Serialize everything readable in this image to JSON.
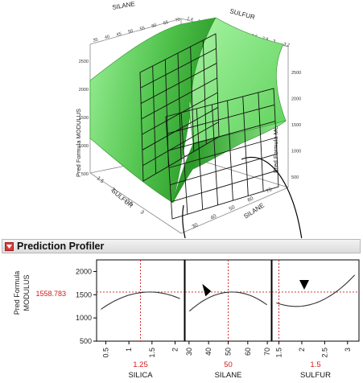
{
  "surface_plot": {
    "axis_titles": {
      "silane": "SILANE",
      "sulfur": "SULFUR",
      "z_left": "Pred Formula MODULUS",
      "z_right": "Pred Formula MODULUS",
      "sulfur_front": "SULFUR",
      "silane_front": "SILANE"
    },
    "back_silane_ticks": [
      "35",
      "40",
      "45",
      "50",
      "55",
      "60",
      "65",
      "70"
    ],
    "back_sulfur_ticks": [
      "1.4",
      "1.6",
      "1.8",
      "2",
      "2.2",
      "2.4",
      "2.6",
      "2.8",
      "3",
      "3.2"
    ],
    "z_ticks_left": [
      "2500",
      "2000",
      "1500",
      "1000",
      "500"
    ],
    "z_ticks_right": [
      "2500",
      "2000",
      "1500",
      "1000",
      "500"
    ],
    "colors": {
      "surface": "#7ee07a",
      "surface_dark": "#2fa72c",
      "grid": "#111111"
    }
  },
  "profiler": {
    "title": "Prediction Profiler",
    "y_label_line1": "Pred Formula",
    "y_label_line2": "MODULUS",
    "y_value": "1558.783",
    "y_ticks": [
      "2000",
      "1500",
      "1000",
      "500"
    ],
    "factors": [
      {
        "name": "SILICA",
        "current": "1.25",
        "ticks": [
          "0.5",
          "1",
          "1.5",
          "2"
        ]
      },
      {
        "name": "SILANE",
        "current": "50",
        "ticks": [
          "30",
          "40",
          "50",
          "60",
          "70"
        ]
      },
      {
        "name": "SULFUR",
        "current": "1.5",
        "ticks": [
          "1.5",
          "2",
          "2.5",
          "3"
        ]
      }
    ],
    "colors": {
      "crosshair": "#d11b1b",
      "curve": "#333333"
    }
  }
}
